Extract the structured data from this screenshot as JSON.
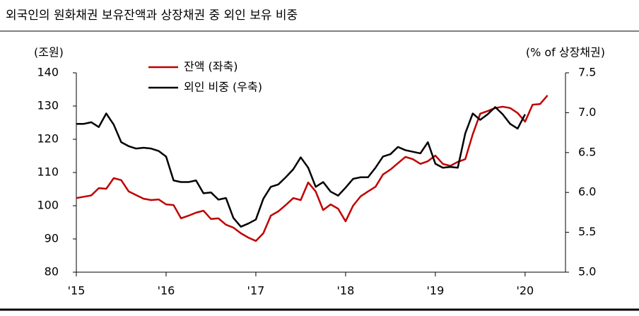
{
  "chart_data": {
    "type": "line",
    "title": "외국인의 원화채권 보유잔액과 상장채권 중 외인 보유 비중",
    "y_label": "(조원)",
    "y2_label": "(% of 상장채권)",
    "x": [
      0,
      1,
      2,
      3,
      4,
      5,
      6,
      7,
      8,
      9,
      10,
      11,
      12,
      13,
      14,
      15,
      16,
      17,
      18,
      19,
      20,
      21,
      22,
      23,
      24,
      25,
      26,
      27,
      28,
      29,
      30,
      31,
      32,
      33,
      34,
      35,
      36,
      37,
      38,
      39,
      40,
      41,
      42,
      43,
      44,
      45,
      46,
      47,
      48,
      49,
      50,
      51,
      52,
      53,
      54,
      55,
      56,
      57,
      58,
      59,
      60,
      61,
      62,
      63
    ],
    "xlim": [
      0,
      65.4
    ],
    "xticks": [
      {
        "value": 0,
        "label": "'15"
      },
      {
        "value": 12,
        "label": "'16"
      },
      {
        "value": 24,
        "label": "'17"
      },
      {
        "value": 36,
        "label": "'18"
      },
      {
        "value": 48,
        "label": "'19"
      },
      {
        "value": 60,
        "label": "'20"
      }
    ],
    "ylim": [
      80,
      140
    ],
    "yticks": [
      80,
      90,
      100,
      110,
      120,
      130,
      140
    ],
    "y2lim": [
      5.0,
      7.5
    ],
    "y2ticks": [
      {
        "value": 5.0,
        "label": "5.0"
      },
      5.5,
      {
        "value": 6.0,
        "label": "6.0"
      },
      6.5,
      {
        "value": 7.0,
        "label": "7.0"
      },
      7.5
    ],
    "series": [
      {
        "name": "잔액 (좌축)",
        "color": "#c00000",
        "values": [
          102.3,
          102.7,
          103.1,
          105.3,
          105.1,
          108.3,
          107.7,
          104.3,
          103.2,
          102.1,
          101.7,
          101.9,
          100.4,
          100.2,
          96.2,
          97,
          97.9,
          98.5,
          96,
          96.2,
          94.3,
          93.4,
          91.7,
          90.4,
          89.4,
          91.7,
          97,
          98.3,
          100.2,
          102.3,
          101.7,
          107,
          104.3,
          98.7,
          100.4,
          99.1,
          95.3,
          100,
          102.8,
          104.3,
          105.7,
          109.4,
          110.9,
          112.8,
          114.7,
          114,
          112.6,
          113.4,
          115.1,
          112.6,
          112,
          113.2,
          114,
          121.5,
          127.7,
          128.5,
          129.4,
          129.8,
          129.4,
          127.9,
          125.3,
          130.4,
          130.6,
          133.2
        ]
      },
      {
        "name": "외인 비중 (우축)",
        "color": "#000000",
        "axis": "y2",
        "values": [
          6.86,
          6.86,
          6.88,
          6.82,
          6.99,
          6.85,
          6.63,
          6.58,
          6.55,
          6.56,
          6.55,
          6.52,
          6.45,
          6.15,
          6.13,
          6.13,
          6.15,
          5.99,
          6.0,
          5.91,
          5.93,
          5.68,
          5.57,
          5.61,
          5.66,
          5.92,
          6.07,
          6.1,
          6.19,
          6.29,
          6.44,
          6.31,
          6.07,
          6.13,
          6.01,
          5.96,
          6.06,
          6.17,
          6.19,
          6.19,
          6.31,
          6.45,
          6.48,
          6.57,
          6.53,
          6.51,
          6.49,
          6.63,
          6.36,
          6.31,
          6.32,
          6.31,
          6.74,
          6.99,
          6.91,
          6.98,
          7.07,
          6.98,
          6.86,
          6.8,
          6.98,
          null,
          null,
          null
        ]
      }
    ]
  }
}
